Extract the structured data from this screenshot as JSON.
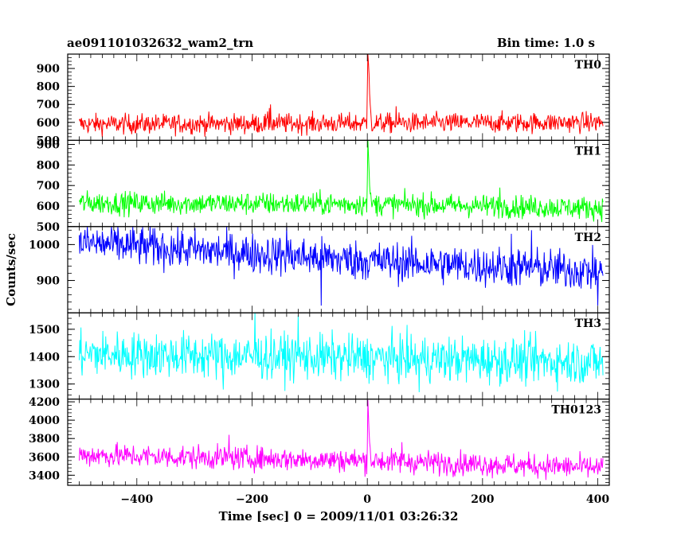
{
  "chart_data": {
    "type": "line",
    "title": "ae091101032632_wam2_trn",
    "subtitle": "Bin time: 1.0 s",
    "xlabel": "Time [sec] 0 = 2009/11/01 03:26:32",
    "ylabel": "Counts/sec",
    "xlim": [
      -520,
      420
    ],
    "x_ticks": [
      -400,
      -200,
      0,
      200,
      400
    ],
    "grid": false,
    "x_start": -500,
    "x_end": 409,
    "x_step": 1,
    "panels": [
      {
        "name": "TH0",
        "color": "#ff0000",
        "ylim": [
          500,
          980
        ],
        "y_ticks": [
          500,
          600,
          700,
          800,
          900
        ],
        "baseline": [
          [
            -500,
            590
          ],
          [
            0,
            595
          ],
          [
            409,
            600
          ]
        ],
        "noise": 28,
        "features": [
          [
            -170,
            680
          ],
          [
            -168,
            700
          ],
          [
            0,
            780
          ],
          [
            1,
            980
          ],
          [
            2,
            930
          ],
          [
            3,
            870
          ],
          [
            4,
            760
          ],
          [
            5,
            700
          ],
          [
            6,
            660
          ],
          [
            50,
            690
          ]
        ]
      },
      {
        "name": "TH1",
        "color": "#00ff00",
        "ylim": [
          500,
          920
        ],
        "y_ticks": [
          500,
          600,
          700,
          800,
          900
        ],
        "baseline": [
          [
            -500,
            615
          ],
          [
            0,
            610
          ],
          [
            409,
            590
          ]
        ],
        "noise": 28,
        "features": [
          [
            0,
            720
          ],
          [
            1,
            920
          ],
          [
            2,
            850
          ],
          [
            3,
            780
          ],
          [
            4,
            700
          ],
          [
            5,
            660
          ],
          [
            230,
            690
          ]
        ]
      },
      {
        "name": "TH2",
        "color": "#0000ff",
        "ylim": [
          810,
          1050
        ],
        "y_ticks": [
          900,
          1000
        ],
        "baseline": [
          [
            -500,
            1005
          ],
          [
            0,
            955
          ],
          [
            409,
            925
          ]
        ],
        "noise": 28,
        "features": [
          [
            -140,
            1050
          ],
          [
            -80,
            830
          ],
          [
            250,
            1030
          ],
          [
            285,
            1040
          ],
          [
            400,
            830
          ]
        ]
      },
      {
        "name": "TH3",
        "color": "#00ffff",
        "ylim": [
          1245,
          1560
        ],
        "y_ticks": [
          1300,
          1400,
          1500
        ],
        "baseline": [
          [
            -500,
            1410
          ],
          [
            0,
            1395
          ],
          [
            409,
            1380
          ]
        ],
        "noise": 42,
        "features": [
          [
            -195,
            1560
          ],
          [
            -120,
            1550
          ],
          [
            -250,
            1280
          ],
          [
            90,
            1270
          ]
        ]
      },
      {
        "name": "TH0123",
        "color": "#ff00ff",
        "ylim": [
          3290,
          4230
        ],
        "y_ticks": [
          3400,
          3600,
          3800,
          4000,
          4200
        ],
        "baseline": [
          [
            -500,
            3620
          ],
          [
            0,
            3560
          ],
          [
            409,
            3480
          ]
        ],
        "noise": 65,
        "features": [
          [
            -240,
            3840
          ],
          [
            0,
            3700
          ],
          [
            1,
            4220
          ],
          [
            2,
            4050
          ],
          [
            3,
            3880
          ],
          [
            4,
            3760
          ],
          [
            5,
            3700
          ],
          [
            60,
            3760
          ]
        ]
      }
    ]
  }
}
